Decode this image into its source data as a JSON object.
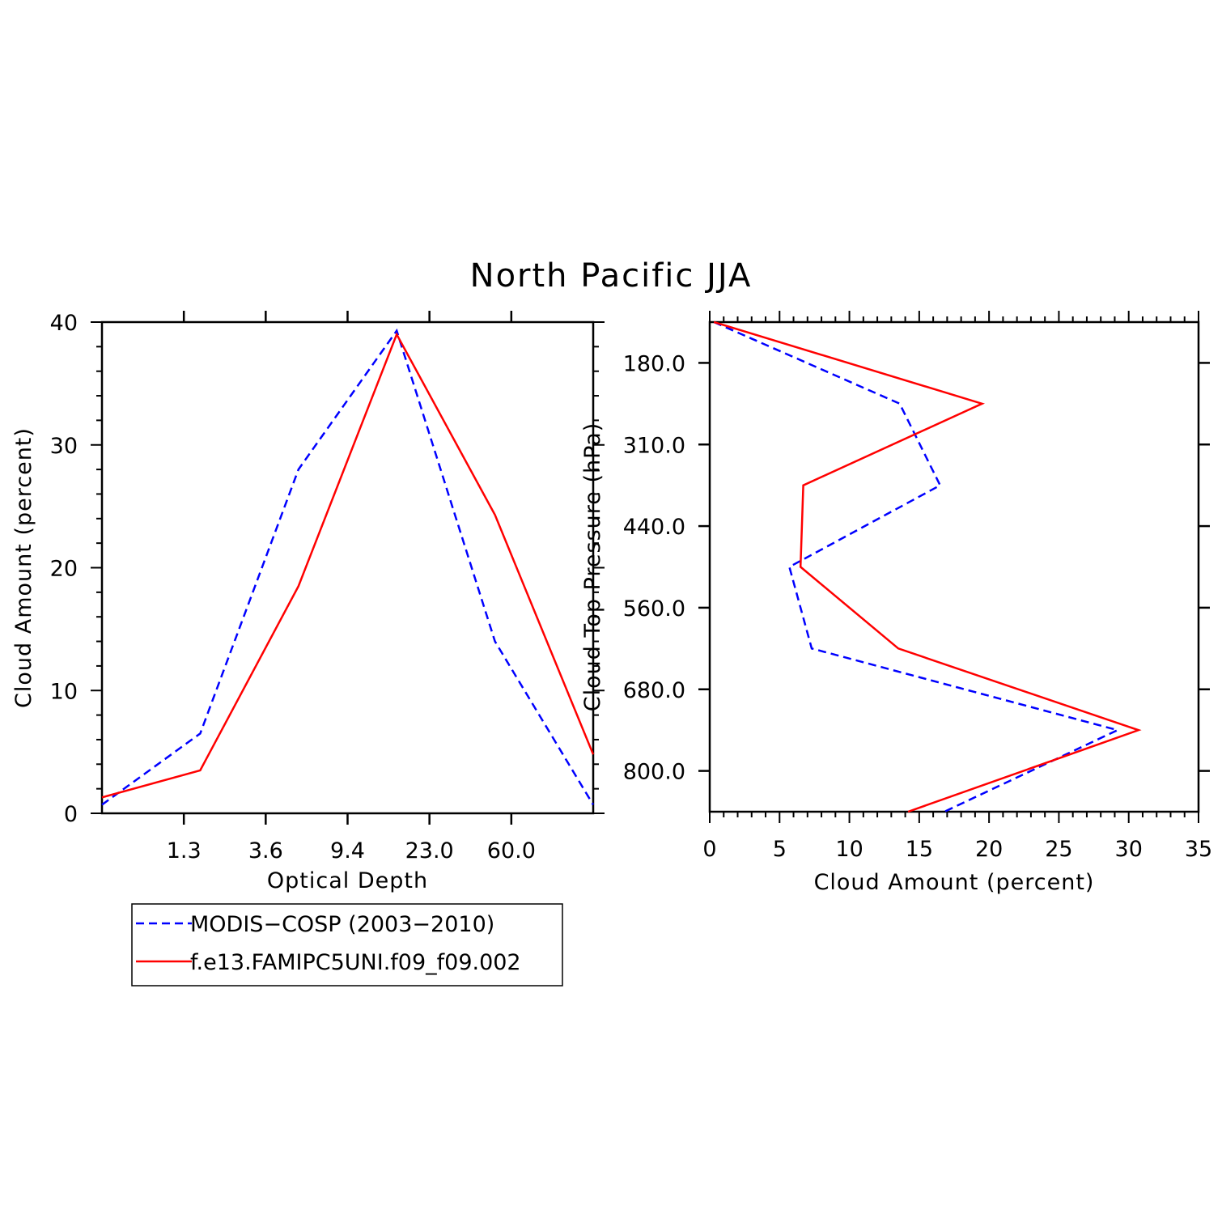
{
  "title": "North Pacific JJA",
  "legend": {
    "entries": [
      {
        "label": "MODIS−COSP (2003−2010)",
        "color": "#0000ff",
        "dash": true
      },
      {
        "label": "f.e13.FAMIPC5UNI.f09_f09.002",
        "color": "#ff0000",
        "dash": false
      }
    ]
  },
  "chart_data": [
    {
      "type": "line",
      "xlabel": "Optical Depth",
      "ylabel": "Cloud Amount (percent)",
      "x_tick_labels": [
        "1.3",
        "3.6",
        "9.4",
        "23.0",
        "60.0"
      ],
      "y_ticks": [
        0,
        10,
        20,
        30,
        40
      ],
      "ylim": [
        0,
        40
      ],
      "grid": false,
      "series": [
        {
          "name": "MODIS−COSP (2003−2010)",
          "color": "#0000ff",
          "dash": true,
          "values": [
            0.7,
            6.5,
            28.0,
            39.3,
            14.0,
            0.7
          ]
        },
        {
          "name": "f.e13.FAMIPC5UNI.f09_f09.002",
          "color": "#ff0000",
          "dash": false,
          "values": [
            1.3,
            3.5,
            18.5,
            39.0,
            24.3,
            4.8
          ]
        }
      ]
    },
    {
      "type": "line",
      "orientation": "horizontal",
      "xlabel": "Cloud Amount (percent)",
      "ylabel": "Cloud Top Pressure (hPa)",
      "x_ticks": [
        0,
        5,
        10,
        15,
        20,
        25,
        30,
        35
      ],
      "xlim": [
        0,
        35
      ],
      "y_tick_labels": [
        "180.0",
        "310.0",
        "440.0",
        "560.0",
        "680.0",
        "800.0"
      ],
      "y_direction": "pressure increases downward",
      "grid": false,
      "series": [
        {
          "name": "MODIS−COSP (2003−2010)",
          "color": "#0000ff",
          "dash": true,
          "values": [
            0.3,
            13.6,
            16.5,
            5.7,
            7.3,
            29.2,
            16.8
          ]
        },
        {
          "name": "f.e13.FAMIPC5UNI.f09_f09.002",
          "color": "#ff0000",
          "dash": false,
          "values": [
            0.3,
            19.5,
            6.7,
            6.5,
            13.5,
            30.7,
            14.2
          ]
        }
      ]
    }
  ]
}
